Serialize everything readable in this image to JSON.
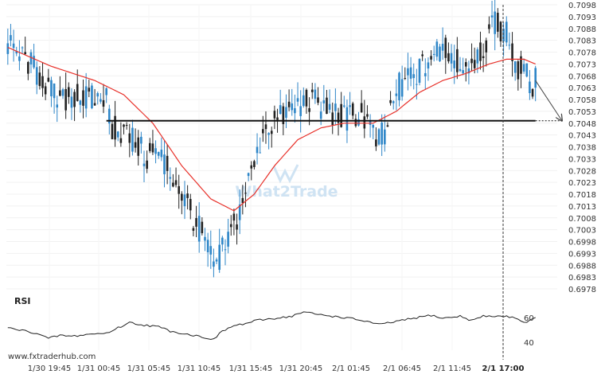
{
  "source_credit": "www.fxtraderhub.com",
  "watermark": "What2Trade",
  "rsi_panel": {
    "title": "RSI",
    "ticks": [
      "60",
      "40"
    ]
  },
  "colors": {
    "bull_candle": "#2e86c8",
    "bear_candle": "#222222",
    "moving_average": "#e8312a",
    "support_line": "#111111",
    "forecast_arrow": "#444444",
    "rsi_line": "#222222",
    "current_time_marker": "#333333"
  },
  "chart_data": [
    {
      "type": "candlestick",
      "y_ticks": [
        "0.7098",
        "0.7093",
        "0.7088",
        "0.7083",
        "0.7078",
        "0.7073",
        "0.7068",
        "0.7063",
        "0.7058",
        "0.7053",
        "0.7048",
        "0.7043",
        "0.7038",
        "0.7033",
        "0.7028",
        "0.7023",
        "0.7018",
        "0.7013",
        "0.7008",
        "0.7003",
        "0.6998",
        "0.6993",
        "0.6988",
        "0.6983",
        "0.6978"
      ],
      "ylim": [
        0.6978,
        0.7098
      ],
      "x_ticks": [
        "1/30 19:45",
        "1/31 00:45",
        "1/31 05:45",
        "1/31 10:45",
        "1/31 15:45",
        "1/31 20:45",
        "2/1 01:45",
        "2/1 06:45",
        "2/1 11:45",
        "2/1 17:00"
      ],
      "current_time_label": "2/1 17:00",
      "support_level": 0.7049,
      "forecast_target": 0.7049,
      "price_path": [
        [
          0,
          0.7081
        ],
        [
          6,
          0.7075
        ],
        [
          10,
          0.707
        ],
        [
          14,
          0.7063
        ],
        [
          18,
          0.7056
        ],
        [
          22,
          0.706
        ],
        [
          28,
          0.7058
        ],
        [
          34,
          0.7059
        ],
        [
          36,
          0.7046
        ],
        [
          40,
          0.7044
        ],
        [
          44,
          0.704
        ],
        [
          48,
          0.7033
        ],
        [
          52,
          0.7036
        ],
        [
          56,
          0.7027
        ],
        [
          60,
          0.7018
        ],
        [
          64,
          0.7008
        ],
        [
          68,
          0.6998
        ],
        [
          71,
          0.6988
        ],
        [
          74,
          0.6994
        ],
        [
          78,
          0.7004
        ],
        [
          82,
          0.702
        ],
        [
          86,
          0.7034
        ],
        [
          88,
          0.7046
        ],
        [
          92,
          0.7048
        ],
        [
          96,
          0.7052
        ],
        [
          100,
          0.7056
        ],
        [
          104,
          0.7058
        ],
        [
          108,
          0.7055
        ],
        [
          112,
          0.7052
        ],
        [
          116,
          0.705
        ],
        [
          120,
          0.7052
        ],
        [
          124,
          0.7049
        ],
        [
          127,
          0.704
        ],
        [
          130,
          0.7044
        ],
        [
          134,
          0.7062
        ],
        [
          138,
          0.7068
        ],
        [
          142,
          0.707
        ],
        [
          146,
          0.7076
        ],
        [
          150,
          0.708
        ],
        [
          152,
          0.7078
        ],
        [
          156,
          0.7072
        ],
        [
          160,
          0.7075
        ],
        [
          164,
          0.708
        ],
        [
          168,
          0.709
        ],
        [
          172,
          0.7086
        ],
        [
          174,
          0.7078
        ],
        [
          176,
          0.707
        ],
        [
          178,
          0.7072
        ],
        [
          180,
          0.7064
        ],
        [
          182,
          0.7066
        ]
      ],
      "moving_average": [
        [
          0,
          0.708
        ],
        [
          15,
          0.7072
        ],
        [
          30,
          0.7066
        ],
        [
          40,
          0.706
        ],
        [
          50,
          0.7048
        ],
        [
          60,
          0.703
        ],
        [
          70,
          0.7016
        ],
        [
          78,
          0.7011
        ],
        [
          85,
          0.7018
        ],
        [
          92,
          0.703
        ],
        [
          100,
          0.7041
        ],
        [
          108,
          0.7046
        ],
        [
          116,
          0.7048
        ],
        [
          126,
          0.7048
        ],
        [
          134,
          0.7053
        ],
        [
          142,
          0.7061
        ],
        [
          150,
          0.7066
        ],
        [
          158,
          0.7069
        ],
        [
          166,
          0.7073
        ],
        [
          172,
          0.7075
        ],
        [
          178,
          0.7075
        ],
        [
          182,
          0.7073
        ]
      ]
    },
    {
      "type": "line",
      "title": "RSI",
      "ylim": [
        30,
        75
      ],
      "values": [
        [
          0,
          51
        ],
        [
          6,
          48
        ],
        [
          10,
          46
        ],
        [
          14,
          41
        ],
        [
          18,
          44
        ],
        [
          22,
          43
        ],
        [
          28,
          45
        ],
        [
          34,
          46
        ],
        [
          38,
          51
        ],
        [
          42,
          56
        ],
        [
          46,
          54
        ],
        [
          52,
          52
        ],
        [
          56,
          48
        ],
        [
          60,
          46
        ],
        [
          64,
          44
        ],
        [
          68,
          42
        ],
        [
          71,
          40
        ],
        [
          74,
          48
        ],
        [
          78,
          53
        ],
        [
          82,
          55
        ],
        [
          86,
          58
        ],
        [
          92,
          60
        ],
        [
          98,
          62
        ],
        [
          102,
          66
        ],
        [
          106,
          64
        ],
        [
          112,
          62
        ],
        [
          118,
          60
        ],
        [
          124,
          57
        ],
        [
          128,
          54
        ],
        [
          134,
          57
        ],
        [
          140,
          60
        ],
        [
          146,
          63
        ],
        [
          150,
          60
        ],
        [
          156,
          62
        ],
        [
          160,
          58
        ],
        [
          164,
          62
        ],
        [
          170,
          62
        ],
        [
          175,
          61
        ],
        [
          178,
          56
        ],
        [
          180,
          58
        ],
        [
          182,
          60
        ]
      ]
    }
  ]
}
